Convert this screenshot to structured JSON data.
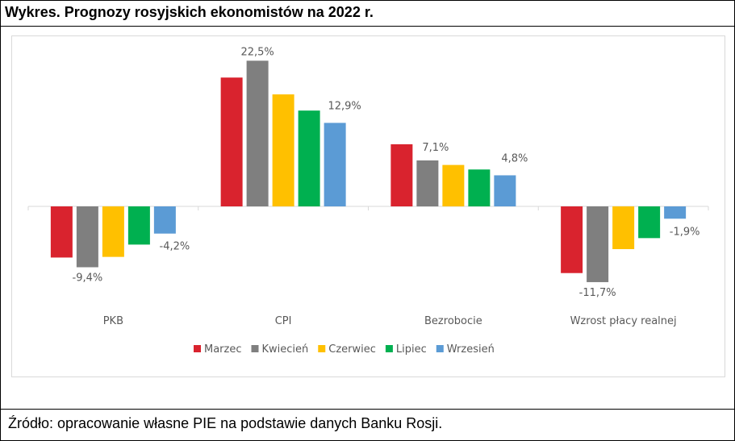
{
  "title": "Wykres. Prognozy rosyjskich ekonomistów na 2022 r.",
  "source": "Źródło: opracowanie własne PIE na podstawie danych Banku Rosji.",
  "chart_data": {
    "type": "bar",
    "title": "Wykres. Prognozy rosyjskich ekonomistów na 2022 r.",
    "xlabel": "",
    "ylabel": "",
    "categories": [
      "PKB",
      "CPI",
      "Bezrobocie",
      "Wzrost płacy realnej"
    ],
    "series": [
      {
        "name": "Marzec",
        "color": "#d9232e",
        "values": [
          -7.9,
          19.9,
          9.6,
          -10.3
        ]
      },
      {
        "name": "Kwiecień",
        "color": "#7f7f7f",
        "values": [
          -9.4,
          22.5,
          7.1,
          -11.7
        ]
      },
      {
        "name": "Czerwiec",
        "color": "#ffc000",
        "values": [
          -7.8,
          17.3,
          6.4,
          -6.6
        ]
      },
      {
        "name": "Lipiec",
        "color": "#00b050",
        "values": [
          -5.9,
          14.8,
          5.7,
          -4.9
        ]
      },
      {
        "name": "Wrzesień",
        "color": "#5b9bd5",
        "values": [
          -4.2,
          12.9,
          4.8,
          -1.9
        ]
      }
    ],
    "data_labels": [
      {
        "series": "Kwiecień",
        "category": "PKB",
        "text": "-9,4%"
      },
      {
        "series": "Wrzesień",
        "category": "PKB",
        "text": "-4,2%"
      },
      {
        "series": "Kwiecień",
        "category": "CPI",
        "text": "22,5%"
      },
      {
        "series": "Wrzesień",
        "category": "CPI",
        "text": "12,9%"
      },
      {
        "series": "Kwiecień",
        "category": "Bezrobocie",
        "text": "7,1%"
      },
      {
        "series": "Wrzesień",
        "category": "Bezrobocie",
        "text": "4,8%"
      },
      {
        "series": "Kwiecień",
        "category": "Wzrost płacy realnej",
        "text": "-11,7%"
      },
      {
        "series": "Wrzesień",
        "category": "Wzrost płacy realnej",
        "text": "-1,9%"
      }
    ],
    "ylim": [
      -14,
      24
    ],
    "grid": false,
    "legend": "bottom"
  }
}
